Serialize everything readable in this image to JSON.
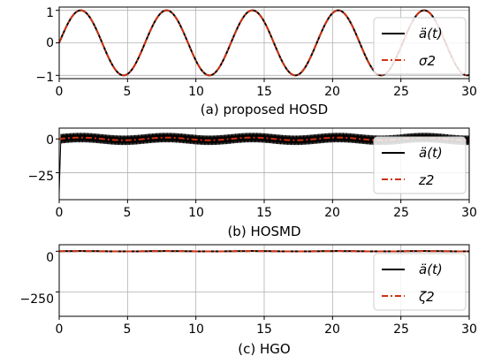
{
  "chart_data": [
    {
      "type": "line",
      "caption": "(a) proposed HOSD",
      "xlim": [
        0,
        30
      ],
      "ylim": [
        -1.1,
        1.1
      ],
      "xticks": [
        0,
        5,
        10,
        15,
        20,
        25,
        30
      ],
      "yticks": [
        -1,
        0,
        1
      ],
      "grid": true,
      "legend_position": "right",
      "series": [
        {
          "name": "ä(t)",
          "function": "sin(t)",
          "x_range": [
            0,
            30
          ],
          "color": "#000000",
          "style": "solid"
        },
        {
          "name": "σ2",
          "function": "sin(t)",
          "x_range": [
            0,
            30
          ],
          "color": "#cc3311",
          "style": "dashdot"
        }
      ]
    },
    {
      "type": "line",
      "caption": "(b) HOSMD",
      "xlim": [
        0,
        30
      ],
      "ylim": [
        -45,
        8
      ],
      "xticks": [
        0,
        5,
        10,
        15,
        20,
        25,
        30
      ],
      "yticks": [
        -25,
        0
      ],
      "grid": true,
      "legend_position": "right",
      "series": [
        {
          "name": "ä(t)",
          "function": "sin(t) with high-frequency chattering band ±3.5",
          "x_range": [
            0,
            30
          ],
          "color": "#000000",
          "style": "solid"
        },
        {
          "name": "z2",
          "function": "sin(t)",
          "x_range": [
            0,
            30
          ],
          "color": "#cc3311",
          "style": "dashdot"
        }
      ],
      "notes": "ä(t) trace starts near -40 at t=0"
    },
    {
      "type": "line",
      "caption": "(c) HGO",
      "xlim": [
        0,
        30
      ],
      "ylim": [
        -400,
        40
      ],
      "xticks": [
        0,
        5,
        10,
        15,
        20,
        25,
        30
      ],
      "yticks": [
        -250,
        0
      ],
      "grid": true,
      "legend_position": "right",
      "series": [
        {
          "name": "ä(t)",
          "function": "sin(t)",
          "x_range": [
            0,
            30
          ],
          "color": "#000000",
          "style": "solid"
        },
        {
          "name": "ζ2",
          "function": "sin(t)",
          "x_range": [
            0,
            30
          ],
          "color": "#cc3311",
          "style": "dashdot"
        }
      ]
    }
  ],
  "colors": {
    "reference": "#000000",
    "estimate": "#cc3311",
    "grid": "#b0b0b0",
    "legend_border": "#cccccc"
  }
}
